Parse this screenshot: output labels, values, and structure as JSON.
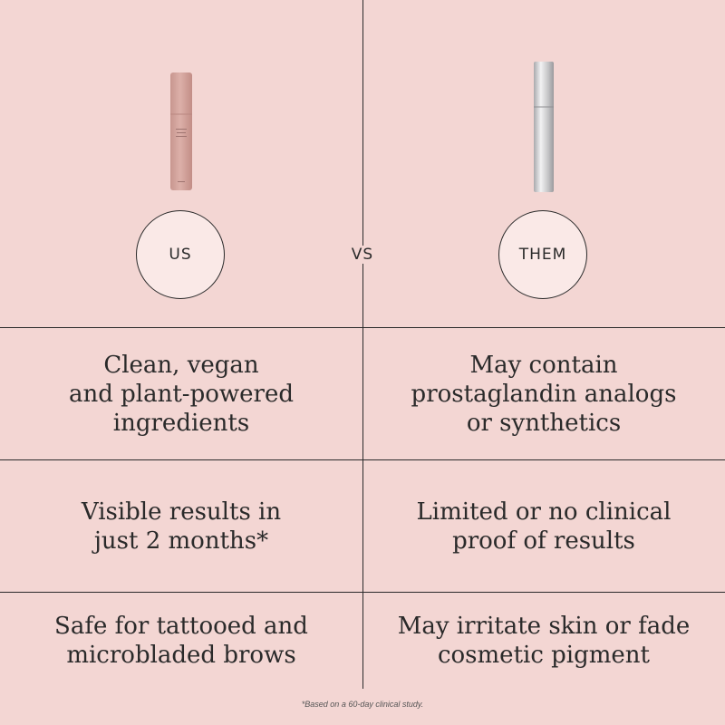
{
  "header": {
    "left_badge": "US",
    "vs_label": "VS",
    "right_badge": "THEM"
  },
  "rows": [
    {
      "us": "Clean, vegan\nand plant-powered\ningredients",
      "them": "May contain\nprostaglandin analogs\nor synthetics"
    },
    {
      "us": "Visible results in\njust 2 months*",
      "them": "Limited or no clinical\nproof of results"
    },
    {
      "us": "Safe for tattooed and\nmicrobladed brows",
      "them": "May irritate skin or fade\ncosmetic pigment"
    }
  ],
  "footnote": "*Based on a 60-day clinical study.",
  "colors": {
    "background": "#f3d6d3",
    "badge_fill": "#fae9e7",
    "line": "#2a2a2a",
    "us_tube": "#d4a7a0",
    "them_tube": "#c9c9cb"
  },
  "icons": {
    "us_product": "pink-serum-tube-icon",
    "them_product": "silver-serum-tube-icon"
  }
}
